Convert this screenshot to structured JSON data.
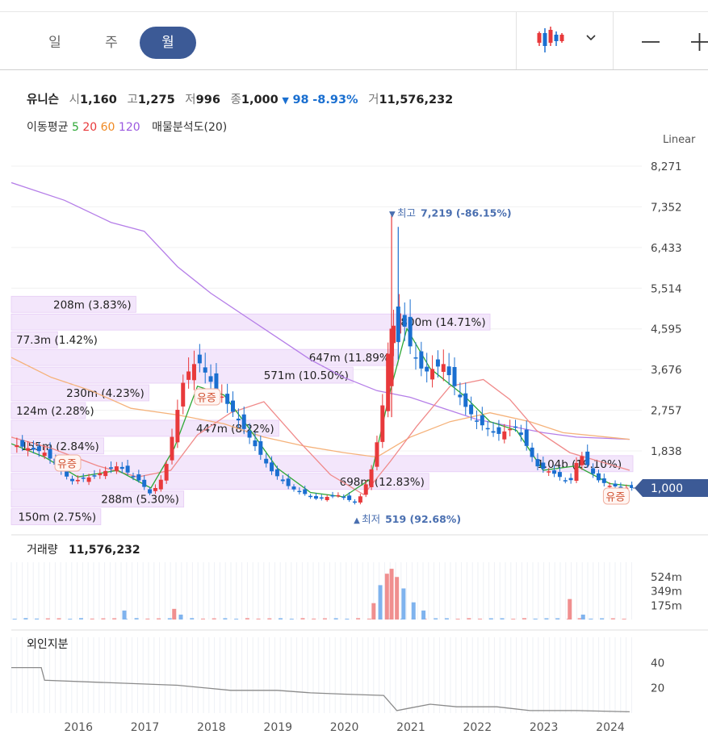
{
  "tabs": [
    {
      "label": "일",
      "active": false
    },
    {
      "label": "주",
      "active": false
    },
    {
      "label": "월",
      "active": true
    }
  ],
  "toolbar": {
    "chart_type_icon": "candlestick-icon",
    "dropdown_icon": "chevron-down-icon",
    "zoom_out_icon": "minus-icon",
    "zoom_in_icon": "plus-icon"
  },
  "stock": {
    "name": "유니슨",
    "open_label": "시",
    "open": "1,160",
    "high_label": "고",
    "high": "1,275",
    "low_label": "저",
    "low": "996",
    "close_label": "종",
    "close": "1,000",
    "change_arrow": "▼",
    "change": "98",
    "change_pct": "-8.93%",
    "volume_label": "거",
    "volume": "11,576,232"
  },
  "ma_legend": {
    "label": "이동평균",
    "periods": [
      {
        "value": "5",
        "color": "#2ea836"
      },
      {
        "value": "20",
        "color": "#e8393b"
      },
      {
        "value": "60",
        "color": "#f08a24"
      },
      {
        "value": "120",
        "color": "#9b59e0"
      }
    ],
    "volume_profile_label": "매물분석도(20)"
  },
  "scale_selector": "Linear",
  "colors": {
    "up": "#e8393b",
    "down": "#1a6fd0",
    "ma5": "#2ea836",
    "ma20": "#f08a8a",
    "ma60": "#f5b27a",
    "ma120": "#b57ee8",
    "accent": "#3c5a96",
    "profile": "#f3e6fb"
  },
  "chart_data": {
    "type": "candlestick",
    "price_axis_ticks": [
      "8,271",
      "7,352",
      "6,433",
      "5,514",
      "4,595",
      "3,676",
      "2,757",
      "1,838"
    ],
    "price_axis_values": [
      8271,
      7352,
      6433,
      5514,
      4595,
      3676,
      2757,
      1838
    ],
    "ylim": [
      600,
      8600
    ],
    "x_axis_labels": [
      "2016",
      "2017",
      "2018",
      "2019",
      "2020",
      "2021",
      "2022",
      "2023",
      "2024"
    ],
    "current_price": {
      "label": "1,000",
      "value": 1000
    },
    "annotations": {
      "high": {
        "arrow": "▼",
        "label": "최고",
        "value_text": "7,219 (-86.15%)",
        "value": 7219
      },
      "low": {
        "arrow": "▲",
        "label": "최저",
        "value_text": "519 (92.68%)",
        "value": 519
      },
      "capital_increase": [
        {
          "label": "유증",
          "year": 2015.85
        },
        {
          "label": "유증",
          "year": 2017.95
        },
        {
          "label": "유증",
          "year": 2024.1
        }
      ]
    },
    "volume_profile": [
      {
        "label": "208m (3.83%)",
        "price_low": 4950,
        "price_high": 5350,
        "pct": 3.83
      },
      {
        "label": "800m (14.71%)",
        "price_low": 4550,
        "price_high": 4950,
        "pct": 14.71
      },
      {
        "label": "77.3m (1.42%)",
        "price_low": 4150,
        "price_high": 4550,
        "pct": 1.42
      },
      {
        "label": "647m (11.89%)",
        "price_low": 3750,
        "price_high": 4150,
        "pct": 11.89
      },
      {
        "label": "571m (10.50%)",
        "price_low": 3350,
        "price_high": 3750,
        "pct": 10.5
      },
      {
        "label": "230m (4.23%)",
        "price_low": 2950,
        "price_high": 3350,
        "pct": 4.23
      },
      {
        "label": "124m (2.28%)",
        "price_low": 2550,
        "price_high": 2950,
        "pct": 2.28
      },
      {
        "label": "447m (8.22%)",
        "price_low": 2150,
        "price_high": 2550,
        "pct": 8.22
      },
      {
        "label": "155m (2.84%)",
        "price_low": 1750,
        "price_high": 2150,
        "pct": 2.84
      },
      {
        "label": "1.04b (19.10%)",
        "price_low": 1350,
        "price_high": 1750,
        "pct": 19.1
      },
      {
        "label": "698m (12.83%)",
        "price_low": 950,
        "price_high": 1350,
        "pct": 12.83
      },
      {
        "label": "288m (5.30%)",
        "price_low": 550,
        "price_high": 950,
        "pct": 5.3
      },
      {
        "label": "150m (2.75%)",
        "price_low": 150,
        "price_high": 550,
        "pct": 2.75
      }
    ],
    "price_series": [
      {
        "year": 2015.0,
        "price": 2000
      },
      {
        "year": 2015.5,
        "price": 1800
      },
      {
        "year": 2015.9,
        "price": 1150
      },
      {
        "year": 2016.2,
        "price": 1250
      },
      {
        "year": 2016.6,
        "price": 1500
      },
      {
        "year": 2016.9,
        "price": 1200
      },
      {
        "year": 2017.1,
        "price": 850
      },
      {
        "year": 2017.3,
        "price": 1300
      },
      {
        "year": 2017.45,
        "price": 2400
      },
      {
        "year": 2017.6,
        "price": 3500
      },
      {
        "year": 2017.8,
        "price": 3900
      },
      {
        "year": 2018.0,
        "price": 3400
      },
      {
        "year": 2018.3,
        "price": 2800
      },
      {
        "year": 2018.6,
        "price": 2100
      },
      {
        "year": 2018.9,
        "price": 1400
      },
      {
        "year": 2019.2,
        "price": 1000
      },
      {
        "year": 2019.6,
        "price": 750
      },
      {
        "year": 2019.9,
        "price": 850
      },
      {
        "year": 2020.2,
        "price": 650
      },
      {
        "year": 2020.4,
        "price": 1300
      },
      {
        "year": 2020.55,
        "price": 2400
      },
      {
        "year": 2020.7,
        "price": 4500
      },
      {
        "year": 2020.85,
        "price": 5000
      },
      {
        "year": 2021.0,
        "price": 4200
      },
      {
        "year": 2021.2,
        "price": 3600
      },
      {
        "year": 2021.5,
        "price": 3800
      },
      {
        "year": 2021.8,
        "price": 2900
      },
      {
        "year": 2022.0,
        "price": 2500
      },
      {
        "year": 2022.3,
        "price": 2200
      },
      {
        "year": 2022.6,
        "price": 2400
      },
      {
        "year": 2022.9,
        "price": 1500
      },
      {
        "year": 2023.2,
        "price": 1300
      },
      {
        "year": 2023.4,
        "price": 1100
      },
      {
        "year": 2023.55,
        "price": 1800
      },
      {
        "year": 2023.8,
        "price": 1200
      },
      {
        "year": 2024.0,
        "price": 1050
      },
      {
        "year": 2024.3,
        "price": 1000
      }
    ],
    "ma120_series": [
      {
        "year": 2015.0,
        "price": 7900
      },
      {
        "year": 2015.8,
        "price": 7500
      },
      {
        "year": 2016.5,
        "price": 7000
      },
      {
        "year": 2017.0,
        "price": 6800
      },
      {
        "year": 2017.5,
        "price": 6000
      },
      {
        "year": 2018.0,
        "price": 5400
      },
      {
        "year": 2018.5,
        "price": 4900
      },
      {
        "year": 2019.0,
        "price": 4400
      },
      {
        "year": 2019.5,
        "price": 3900
      },
      {
        "year": 2020.0,
        "price": 3500
      },
      {
        "year": 2020.5,
        "price": 3200
      },
      {
        "year": 2021.0,
        "price": 3050
      },
      {
        "year": 2021.5,
        "price": 2800
      },
      {
        "year": 2022.0,
        "price": 2550
      },
      {
        "year": 2022.5,
        "price": 2400
      },
      {
        "year": 2023.0,
        "price": 2250
      },
      {
        "year": 2023.5,
        "price": 2150
      },
      {
        "year": 2024.3,
        "price": 2100
      }
    ],
    "ma60_series": [
      {
        "year": 2015.0,
        "price": 3950
      },
      {
        "year": 2015.6,
        "price": 3500
      },
      {
        "year": 2016.2,
        "price": 3200
      },
      {
        "year": 2016.8,
        "price": 2800
      },
      {
        "year": 2017.5,
        "price": 2650
      },
      {
        "year": 2018.2,
        "price": 2450
      },
      {
        "year": 2018.8,
        "price": 2150
      },
      {
        "year": 2019.4,
        "price": 1950
      },
      {
        "year": 2020.0,
        "price": 1800
      },
      {
        "year": 2020.5,
        "price": 1700
      },
      {
        "year": 2021.0,
        "price": 2150
      },
      {
        "year": 2021.6,
        "price": 2500
      },
      {
        "year": 2022.2,
        "price": 2700
      },
      {
        "year": 2022.8,
        "price": 2500
      },
      {
        "year": 2023.3,
        "price": 2250
      },
      {
        "year": 2024.3,
        "price": 2100
      }
    ],
    "ma20_series": [
      {
        "year": 2015.0,
        "price": 2150
      },
      {
        "year": 2015.6,
        "price": 1900
      },
      {
        "year": 2016.3,
        "price": 1500
      },
      {
        "year": 2016.9,
        "price": 1250
      },
      {
        "year": 2017.4,
        "price": 1400
      },
      {
        "year": 2017.8,
        "price": 2200
      },
      {
        "year": 2018.3,
        "price": 2700
      },
      {
        "year": 2018.8,
        "price": 2950
      },
      {
        "year": 2019.3,
        "price": 2100
      },
      {
        "year": 2019.8,
        "price": 1300
      },
      {
        "year": 2020.3,
        "price": 850
      },
      {
        "year": 2020.7,
        "price": 1600
      },
      {
        "year": 2021.1,
        "price": 2400
      },
      {
        "year": 2021.6,
        "price": 3300
      },
      {
        "year": 2022.1,
        "price": 3450
      },
      {
        "year": 2022.5,
        "price": 3000
      },
      {
        "year": 2022.9,
        "price": 2300
      },
      {
        "year": 2023.4,
        "price": 1800
      },
      {
        "year": 2024.3,
        "price": 1400
      }
    ],
    "ma5_series": [
      {
        "year": 2015.0,
        "price": 2000
      },
      {
        "year": 2015.5,
        "price": 1700
      },
      {
        "year": 2016.0,
        "price": 1250
      },
      {
        "year": 2016.6,
        "price": 1400
      },
      {
        "year": 2017.1,
        "price": 1000
      },
      {
        "year": 2017.45,
        "price": 1900
      },
      {
        "year": 2017.8,
        "price": 3300
      },
      {
        "year": 2018.2,
        "price": 3100
      },
      {
        "year": 2018.6,
        "price": 2300
      },
      {
        "year": 2019.0,
        "price": 1450
      },
      {
        "year": 2019.5,
        "price": 900
      },
      {
        "year": 2020.0,
        "price": 800
      },
      {
        "year": 2020.4,
        "price": 1200
      },
      {
        "year": 2020.7,
        "price": 3200
      },
      {
        "year": 2020.95,
        "price": 4600
      },
      {
        "year": 2021.3,
        "price": 3700
      },
      {
        "year": 2021.8,
        "price": 3100
      },
      {
        "year": 2022.2,
        "price": 2500
      },
      {
        "year": 2022.6,
        "price": 2300
      },
      {
        "year": 2023.0,
        "price": 1400
      },
      {
        "year": 2023.5,
        "price": 1500
      },
      {
        "year": 2024.0,
        "price": 1100
      },
      {
        "year": 2024.3,
        "price": 1050
      }
    ],
    "volume_panel": {
      "label": "거래량",
      "value": "11,576,232",
      "ticks": [
        "524m",
        "349m",
        "175m"
      ],
      "tick_values": [
        524,
        349,
        175
      ],
      "ylim": [
        0,
        700
      ],
      "bars": [
        {
          "year": 2016.7,
          "value": 110,
          "up": false
        },
        {
          "year": 2017.45,
          "value": 130,
          "up": true
        },
        {
          "year": 2017.55,
          "value": 60,
          "up": false
        },
        {
          "year": 2020.45,
          "value": 200,
          "up": true
        },
        {
          "year": 2020.55,
          "value": 420,
          "up": false
        },
        {
          "year": 2020.65,
          "value": 560,
          "up": true
        },
        {
          "year": 2020.72,
          "value": 620,
          "up": true
        },
        {
          "year": 2020.8,
          "value": 520,
          "up": true
        },
        {
          "year": 2020.9,
          "value": 380,
          "up": false
        },
        {
          "year": 2021.05,
          "value": 210,
          "up": false
        },
        {
          "year": 2021.2,
          "value": 110,
          "up": false
        },
        {
          "year": 2023.4,
          "value": 250,
          "up": true
        },
        {
          "year": 2023.6,
          "value": 60,
          "up": false
        }
      ]
    },
    "foreign_panel": {
      "label": "외인지분",
      "ticks": [
        "40",
        "20"
      ],
      "tick_values": [
        40,
        20
      ],
      "ylim": [
        0,
        60
      ],
      "series": [
        {
          "year": 2015.0,
          "value": 36
        },
        {
          "year": 2015.45,
          "value": 36
        },
        {
          "year": 2015.5,
          "value": 26
        },
        {
          "year": 2016.5,
          "value": 24
        },
        {
          "year": 2017.5,
          "value": 22
        },
        {
          "year": 2018.3,
          "value": 18
        },
        {
          "year": 2019.0,
          "value": 18
        },
        {
          "year": 2019.5,
          "value": 16
        },
        {
          "year": 2020.0,
          "value": 15
        },
        {
          "year": 2020.6,
          "value": 14
        },
        {
          "year": 2020.8,
          "value": 2
        },
        {
          "year": 2021.0,
          "value": 4
        },
        {
          "year": 2021.3,
          "value": 7
        },
        {
          "year": 2021.7,
          "value": 5
        },
        {
          "year": 2022.3,
          "value": 5
        },
        {
          "year": 2022.8,
          "value": 2
        },
        {
          "year": 2023.5,
          "value": 2
        },
        {
          "year": 2024.3,
          "value": 1
        }
      ]
    }
  }
}
